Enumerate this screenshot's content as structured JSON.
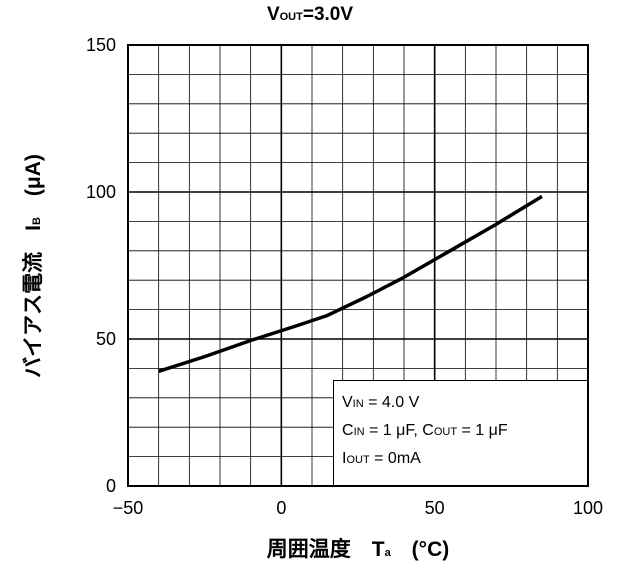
{
  "chart_data": {
    "type": "line",
    "title": {
      "main": "V",
      "sub": "OUT",
      "rest": "=3.0V"
    },
    "xlabel": {
      "main": "周囲温度　T",
      "sub": "a",
      "rest": "　(°C)"
    },
    "ylabel": {
      "main": "バイアス電流　I",
      "sub": "B",
      "rest": "　(μA)"
    },
    "xlim": [
      -50,
      100
    ],
    "ylim": [
      0,
      150
    ],
    "x_ticks": [
      -50,
      0,
      50,
      100
    ],
    "x_tick_labels": [
      "−50",
      "0",
      "50",
      "100"
    ],
    "y_ticks": [
      0,
      50,
      100,
      150
    ],
    "y_tick_labels": [
      "0",
      "50",
      "100",
      "150"
    ],
    "grid": true,
    "series": [
      {
        "x": [
          -40,
          -25,
          -10,
          5,
          15,
          28,
          40,
          55,
          70,
          85
        ],
        "y": [
          39,
          44,
          49.5,
          54.5,
          58,
          64.5,
          71,
          80,
          89,
          98.5
        ]
      }
    ],
    "legend_box": {
      "lines": [
        {
          "main": "V",
          "sub": "IN",
          "rest": " = 4.0 V"
        },
        {
          "main": "C",
          "sub": "IN",
          "rest": " = 1 μF, C",
          "sub2": "OUT",
          "rest2": " = 1 μF"
        },
        {
          "main": "I",
          "sub": "OUT",
          "rest": " = 0mA"
        }
      ],
      "placement": "bottom-right"
    }
  }
}
